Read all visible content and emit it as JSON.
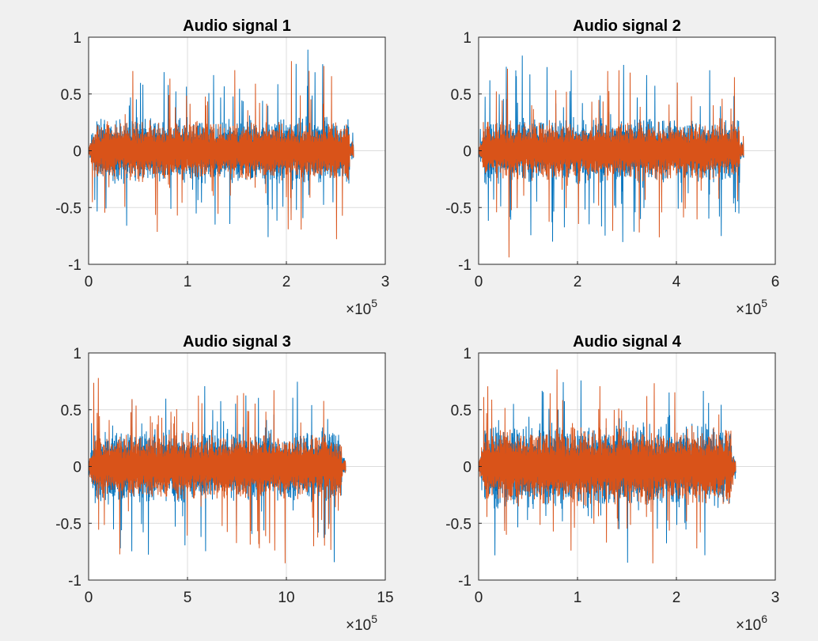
{
  "figure": {
    "background": "#f0f0f0"
  },
  "colors": {
    "series1": "#0072bd",
    "series2": "#d95319",
    "axes_bg": "#ffffff",
    "grid": "#dcdcdc",
    "axis_line": "#262626"
  },
  "chart_data": [
    {
      "type": "line",
      "title": "Audio signal 1",
      "xlim": [
        0,
        3
      ],
      "ylim": [
        -1,
        1
      ],
      "x_scale_exponent": "5",
      "x_ticks": [
        "0",
        "1",
        "2",
        "3"
      ],
      "y_ticks": [
        "-1",
        "-0.5",
        "0",
        "0.5",
        "1"
      ],
      "grid": true,
      "x_end": 2.68,
      "series": [
        {
          "color": "#0072bd",
          "max_abs": 0.92,
          "typical": 0.22
        },
        {
          "color": "#d95319",
          "max_abs": 0.88,
          "typical": 0.2
        }
      ],
      "seed": 11
    },
    {
      "type": "line",
      "title": "Audio signal 2",
      "xlim": [
        0,
        6
      ],
      "ylim": [
        -1,
        1
      ],
      "x_scale_exponent": "5",
      "x_ticks": [
        "0",
        "2",
        "4",
        "6"
      ],
      "y_ticks": [
        "-1",
        "-0.5",
        "0",
        "0.5",
        "1"
      ],
      "grid": true,
      "x_end": 5.36,
      "series": [
        {
          "color": "#0072bd",
          "max_abs": 0.93,
          "typical": 0.22
        },
        {
          "color": "#d95319",
          "max_abs": 0.94,
          "typical": 0.2
        }
      ],
      "seed": 23
    },
    {
      "type": "line",
      "title": "Audio signal 3",
      "xlim": [
        0,
        15
      ],
      "ylim": [
        -1,
        1
      ],
      "x_scale_exponent": "5",
      "x_ticks": [
        "0",
        "5",
        "10",
        "15"
      ],
      "y_ticks": [
        "-1",
        "-0.5",
        "0",
        "0.5",
        "1"
      ],
      "grid": true,
      "x_end": 13.0,
      "series": [
        {
          "color": "#0072bd",
          "max_abs": 0.93,
          "typical": 0.25
        },
        {
          "color": "#d95319",
          "max_abs": 0.96,
          "typical": 0.22
        }
      ],
      "seed": 37
    },
    {
      "type": "line",
      "title": "Audio signal 4",
      "xlim": [
        0,
        3
      ],
      "ylim": [
        -1,
        1
      ],
      "x_scale_exponent": "6",
      "x_ticks": [
        "0",
        "1",
        "2",
        "3"
      ],
      "y_ticks": [
        "-1",
        "-0.5",
        "0",
        "0.5",
        "1"
      ],
      "grid": true,
      "x_end": 2.6,
      "series": [
        {
          "color": "#0072bd",
          "max_abs": 0.93,
          "typical": 0.28
        },
        {
          "color": "#d95319",
          "max_abs": 0.96,
          "typical": 0.26
        }
      ],
      "seed": 53
    }
  ]
}
